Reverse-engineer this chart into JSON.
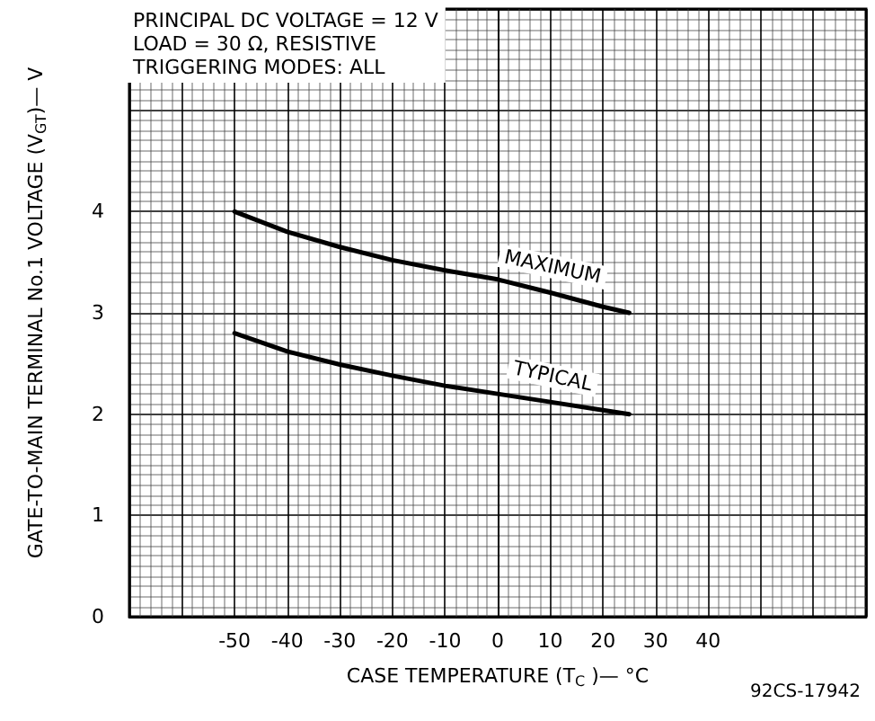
{
  "chart_data": {
    "type": "line",
    "xlabel": "CASE TEMPERATURE (T$_{C}$ )— °C",
    "ylabel": "GATE-TO-MAIN TERMINAL No.1 VOLTAGE (V$_{GT}$)— V",
    "annotations": [
      "PRINCIPAL DC VOLTAGE = 12 V",
      "LOAD = 30 Ω, RESISTIVE",
      "TRIGGERING MODES: ALL",
      "92CS-17942"
    ],
    "x": [
      -50,
      -40,
      -30,
      -20,
      -10,
      0,
      10,
      20,
      25
    ],
    "series": [
      {
        "name": "MAXIMUM",
        "color": "#000000",
        "values": [
          4.0,
          3.8,
          3.65,
          3.52,
          3.42,
          3.33,
          3.2,
          3.06,
          3.0
        ]
      },
      {
        "name": "TYPICAL",
        "color": "#000000",
        "values": [
          2.8,
          2.62,
          2.49,
          2.38,
          2.28,
          2.2,
          2.12,
          2.04,
          2.0
        ]
      }
    ],
    "xlim": [
      -70,
      70
    ],
    "xticks": [
      -50,
      -40,
      -30,
      -20,
      -10,
      0,
      10,
      20,
      30,
      40
    ],
    "ylim": [
      0,
      6
    ],
    "yticks": [
      0,
      1,
      2,
      3,
      4
    ],
    "grid": true,
    "legend": false,
    "marker": "none",
    "line_style": "solid"
  }
}
